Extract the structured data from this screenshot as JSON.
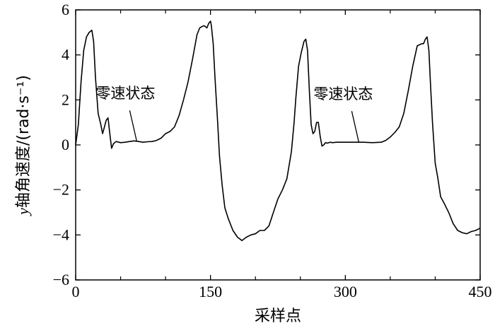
{
  "chart_data": {
    "type": "line",
    "xlabel": "采样点",
    "ylabel_var": "y",
    "ylabel_text": "轴角速度/(rad·s⁻¹)",
    "xlim": [
      0,
      450
    ],
    "ylim": [
      -6,
      6
    ],
    "x_ticks": [
      0,
      150,
      300,
      450
    ],
    "x_minor_ticks": [
      50,
      100,
      200,
      250,
      350,
      400
    ],
    "y_ticks": [
      -6,
      -4,
      -2,
      0,
      2,
      4,
      6
    ],
    "grid": false,
    "annotations": [
      {
        "text": "零速状态",
        "point": [
          68,
          0.15
        ]
      },
      {
        "text": "零速状态",
        "point": [
          315,
          0.12
        ]
      }
    ],
    "series": [
      {
        "x": [
          0,
          3,
          6,
          9,
          12,
          15,
          18,
          20,
          22,
          25,
          28,
          30,
          32,
          34,
          36,
          38,
          40,
          42,
          45,
          50,
          55,
          60,
          65,
          70,
          75,
          80,
          85,
          90,
          95,
          100,
          105,
          110,
          115,
          120,
          125,
          130,
          135,
          138,
          140,
          143,
          146,
          148,
          150,
          151,
          153,
          155,
          158,
          160,
          163,
          166,
          170,
          175,
          180,
          185,
          190,
          195,
          200,
          205,
          210,
          215,
          220,
          225,
          230,
          235,
          240,
          243,
          245,
          248,
          251,
          254,
          256,
          258,
          260,
          262,
          264,
          266,
          268,
          270,
          272,
          274,
          276,
          278,
          280,
          283,
          286,
          290,
          300,
          310,
          320,
          330,
          340,
          345,
          350,
          355,
          360,
          365,
          370,
          375,
          380,
          385,
          387,
          389,
          391,
          393,
          395,
          397,
          400,
          403,
          406,
          410,
          415,
          420,
          425,
          430,
          435,
          440,
          445,
          450
        ],
        "values": [
          0.0,
          0.9,
          2.8,
          4.2,
          4.8,
          5.0,
          5.1,
          4.6,
          3.0,
          1.4,
          0.9,
          0.5,
          0.8,
          1.1,
          1.2,
          0.5,
          -0.15,
          0.05,
          0.15,
          0.1,
          0.12,
          0.15,
          0.18,
          0.15,
          0.12,
          0.14,
          0.15,
          0.2,
          0.3,
          0.5,
          0.6,
          0.8,
          1.3,
          2.0,
          2.8,
          3.8,
          4.9,
          5.2,
          5.25,
          5.3,
          5.2,
          5.4,
          5.5,
          5.3,
          4.5,
          3.0,
          1.0,
          -0.5,
          -1.8,
          -2.8,
          -3.3,
          -3.8,
          -4.1,
          -4.25,
          -4.1,
          -4.0,
          -3.95,
          -3.8,
          -3.8,
          -3.6,
          -3.0,
          -2.4,
          -2.0,
          -1.5,
          -0.3,
          1.0,
          2.1,
          3.5,
          4.1,
          4.6,
          4.7,
          4.2,
          2.4,
          0.9,
          0.5,
          0.6,
          1.0,
          1.0,
          0.4,
          -0.05,
          0.0,
          0.1,
          0.08,
          0.12,
          0.1,
          0.12,
          0.12,
          0.12,
          0.12,
          0.1,
          0.12,
          0.2,
          0.35,
          0.55,
          0.8,
          1.4,
          2.4,
          3.5,
          4.4,
          4.5,
          4.5,
          4.7,
          4.8,
          4.2,
          2.5,
          1.0,
          -0.8,
          -1.5,
          -2.3,
          -2.6,
          -3.0,
          -3.5,
          -3.8,
          -3.9,
          -3.95,
          -3.85,
          -3.8,
          -3.7
        ]
      }
    ]
  }
}
